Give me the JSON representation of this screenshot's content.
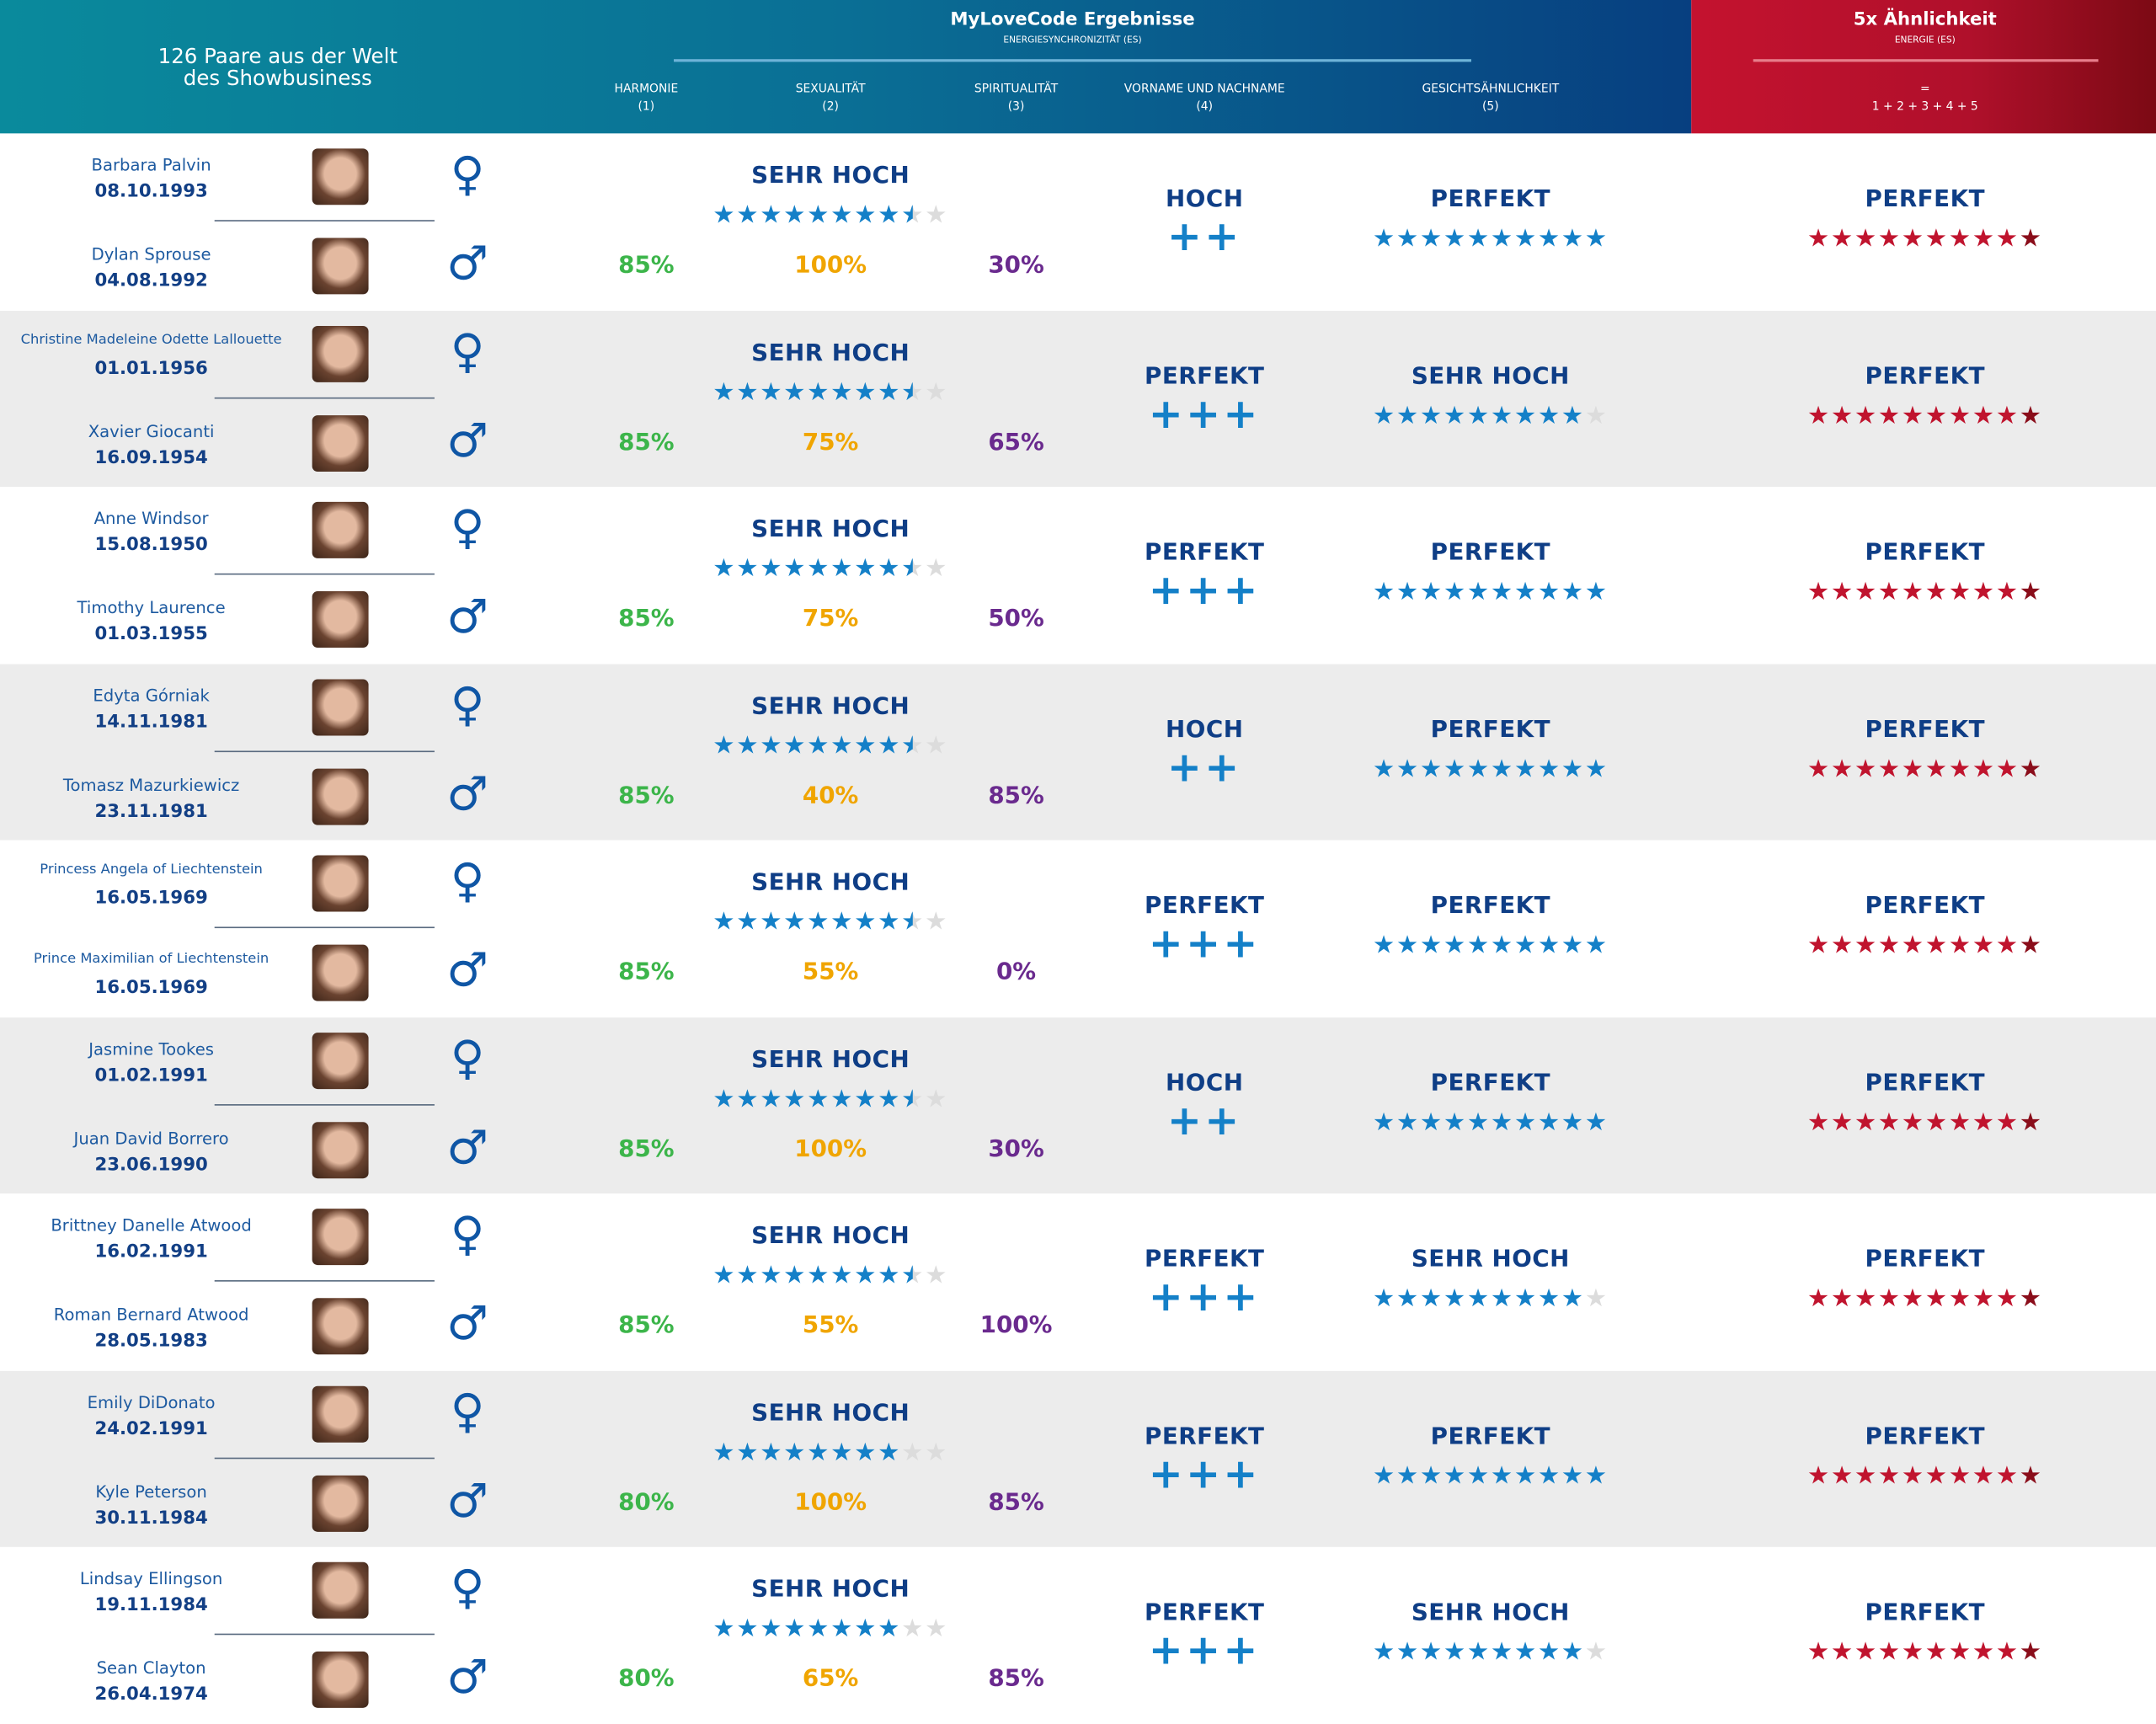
{
  "header": {
    "left_title_line1": "126 Paare aus der Welt",
    "left_title_line2": "des Showbusiness",
    "main_title": "MyLoveCode Ergebnisse",
    "main_subtitle": "ENERGIESYNCHRONIZITÄT (ES)",
    "columns": [
      {
        "label": "HARMONIE",
        "num": "(1)"
      },
      {
        "label": "SEXUALITÄT",
        "num": "(2)"
      },
      {
        "label": "SPIRITUALITÄT",
        "num": "(3)"
      },
      {
        "label": "VORNAME UND NACHNAME",
        "num": "(4)"
      },
      {
        "label": "GESICHTSÄHNLICHKEIT",
        "num": "(5)"
      }
    ],
    "red_title": "5x Ähnlichkeit",
    "red_subtitle": "ENERGIE (ES)",
    "red_eq": "=",
    "red_formula": "1 + 2 + 3 + 4 + 5"
  },
  "colors": {
    "harmonie": "#3cb54a",
    "sexualitaet": "#f0a500",
    "spiritualitaet": "#6a2a8e",
    "blue_star": "#1480c8",
    "red_star": "#c0142e"
  },
  "gender_symbols": {
    "female": "♀",
    "male": "♂"
  },
  "rows": [
    {
      "p1": {
        "name": "Barbara Palvin",
        "date": "08.10.1993"
      },
      "p2": {
        "name": "Dylan Sprouse",
        "date": "04.08.1992"
      },
      "harmonie": "85%",
      "sex_level": "SEHR HOCH",
      "sex_stars": 8.5,
      "sexualitaet": "100%",
      "spiritualitaet": "30%",
      "name_level": "HOCH",
      "name_plus": "++",
      "face_level": "PERFEKT",
      "face_stars": 10,
      "energy_level": "PERFEKT",
      "energy_stars": 10
    },
    {
      "p1": {
        "name": "Christine Madeleine Odette Lallouette",
        "date": "01.01.1956"
      },
      "p2": {
        "name": "Xavier Giocanti",
        "date": "16.09.1954"
      },
      "harmonie": "85%",
      "sex_level": "SEHR HOCH",
      "sex_stars": 8.5,
      "sexualitaet": "75%",
      "spiritualitaet": "65%",
      "name_level": "PERFEKT",
      "name_plus": "+++",
      "face_level": "SEHR HOCH",
      "face_stars": 9,
      "energy_level": "PERFEKT",
      "energy_stars": 10
    },
    {
      "p1": {
        "name": "Anne Windsor",
        "date": "15.08.1950"
      },
      "p2": {
        "name": "Timothy Laurence",
        "date": "01.03.1955"
      },
      "harmonie": "85%",
      "sex_level": "SEHR HOCH",
      "sex_stars": 8.5,
      "sexualitaet": "75%",
      "spiritualitaet": "50%",
      "name_level": "PERFEKT",
      "name_plus": "+++",
      "face_level": "PERFEKT",
      "face_stars": 10,
      "energy_level": "PERFEKT",
      "energy_stars": 10
    },
    {
      "p1": {
        "name": "Edyta Górniak",
        "date": "14.11.1981"
      },
      "p2": {
        "name": "Tomasz Mazurkiewicz",
        "date": "23.11.1981"
      },
      "harmonie": "85%",
      "sex_level": "SEHR HOCH",
      "sex_stars": 8.5,
      "sexualitaet": "40%",
      "spiritualitaet": "85%",
      "name_level": "HOCH",
      "name_plus": "++",
      "face_level": "PERFEKT",
      "face_stars": 10,
      "energy_level": "PERFEKT",
      "energy_stars": 10
    },
    {
      "p1": {
        "name": "Princess Angela of Liechtenstein",
        "date": "16.05.1969"
      },
      "p2": {
        "name": "Prince Maximilian of Liechtenstein",
        "date": "16.05.1969"
      },
      "harmonie": "85%",
      "sex_level": "SEHR HOCH",
      "sex_stars": 8.5,
      "sexualitaet": "55%",
      "spiritualitaet": "0%",
      "name_level": "PERFEKT",
      "name_plus": "+++",
      "face_level": "PERFEKT",
      "face_stars": 10,
      "energy_level": "PERFEKT",
      "energy_stars": 10
    },
    {
      "p1": {
        "name": "Jasmine Tookes",
        "date": "01.02.1991"
      },
      "p2": {
        "name": "Juan David Borrero",
        "date": "23.06.1990"
      },
      "harmonie": "85%",
      "sex_level": "SEHR HOCH",
      "sex_stars": 8.5,
      "sexualitaet": "100%",
      "spiritualitaet": "30%",
      "name_level": "HOCH",
      "name_plus": "++",
      "face_level": "PERFEKT",
      "face_stars": 10,
      "energy_level": "PERFEKT",
      "energy_stars": 10
    },
    {
      "p1": {
        "name": "Brittney Danelle Atwood",
        "date": "16.02.1991"
      },
      "p2": {
        "name": "Roman Bernard Atwood",
        "date": "28.05.1983"
      },
      "harmonie": "85%",
      "sex_level": "SEHR HOCH",
      "sex_stars": 8.5,
      "sexualitaet": "55%",
      "spiritualitaet": "100%",
      "name_level": "PERFEKT",
      "name_plus": "+++",
      "face_level": "SEHR HOCH",
      "face_stars": 9,
      "energy_level": "PERFEKT",
      "energy_stars": 10
    },
    {
      "p1": {
        "name": "Emily DiDonato",
        "date": "24.02.1991"
      },
      "p2": {
        "name": "Kyle Peterson",
        "date": "30.11.1984"
      },
      "harmonie": "80%",
      "sex_level": "SEHR HOCH",
      "sex_stars": 8,
      "sexualitaet": "100%",
      "spiritualitaet": "85%",
      "name_level": "PERFEKT",
      "name_plus": "+++",
      "face_level": "PERFEKT",
      "face_stars": 10,
      "energy_level": "PERFEKT",
      "energy_stars": 10
    },
    {
      "p1": {
        "name": "Lindsay Ellingson",
        "date": "19.11.1984"
      },
      "p2": {
        "name": "Sean Clayton",
        "date": "26.04.1974"
      },
      "harmonie": "80%",
      "sex_level": "SEHR HOCH",
      "sex_stars": 8,
      "sexualitaet": "65%",
      "spiritualitaet": "85%",
      "name_level": "PERFEKT",
      "name_plus": "+++",
      "face_level": "SEHR HOCH",
      "face_stars": 9,
      "energy_level": "PERFEKT",
      "energy_stars": 10
    }
  ]
}
